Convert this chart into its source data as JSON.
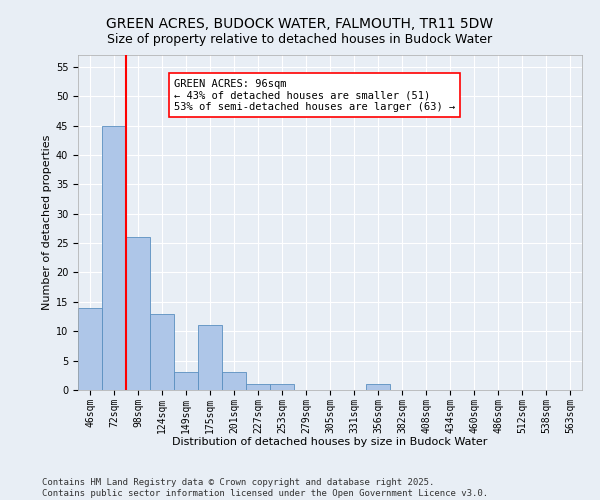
{
  "title": "GREEN ACRES, BUDOCK WATER, FALMOUTH, TR11 5DW",
  "subtitle": "Size of property relative to detached houses in Budock Water",
  "xlabel": "Distribution of detached houses by size in Budock Water",
  "ylabel": "Number of detached properties",
  "categories": [
    "46sqm",
    "72sqm",
    "98sqm",
    "124sqm",
    "149sqm",
    "175sqm",
    "201sqm",
    "227sqm",
    "253sqm",
    "279sqm",
    "305sqm",
    "331sqm",
    "356sqm",
    "382sqm",
    "408sqm",
    "434sqm",
    "460sqm",
    "486sqm",
    "512sqm",
    "538sqm",
    "563sqm"
  ],
  "values": [
    14,
    45,
    26,
    13,
    3,
    11,
    3,
    1,
    1,
    0,
    0,
    0,
    1,
    0,
    0,
    0,
    0,
    0,
    0,
    0,
    0
  ],
  "bar_color": "#aec6e8",
  "bar_edge_color": "#5a8fc0",
  "vline_x": 1.5,
  "vline_color": "red",
  "annotation_text": "GREEN ACRES: 96sqm\n← 43% of detached houses are smaller (51)\n53% of semi-detached houses are larger (63) →",
  "annotation_box_color": "white",
  "annotation_box_edge_color": "red",
  "ylim": [
    0,
    57
  ],
  "yticks": [
    0,
    5,
    10,
    15,
    20,
    25,
    30,
    35,
    40,
    45,
    50,
    55
  ],
  "background_color": "#e8eef5",
  "grid_color": "white",
  "footer": "Contains HM Land Registry data © Crown copyright and database right 2025.\nContains public sector information licensed under the Open Government Licence v3.0.",
  "title_fontsize": 10,
  "subtitle_fontsize": 9,
  "xlabel_fontsize": 8,
  "ylabel_fontsize": 8,
  "tick_fontsize": 7,
  "annotation_fontsize": 7.5,
  "footer_fontsize": 6.5
}
